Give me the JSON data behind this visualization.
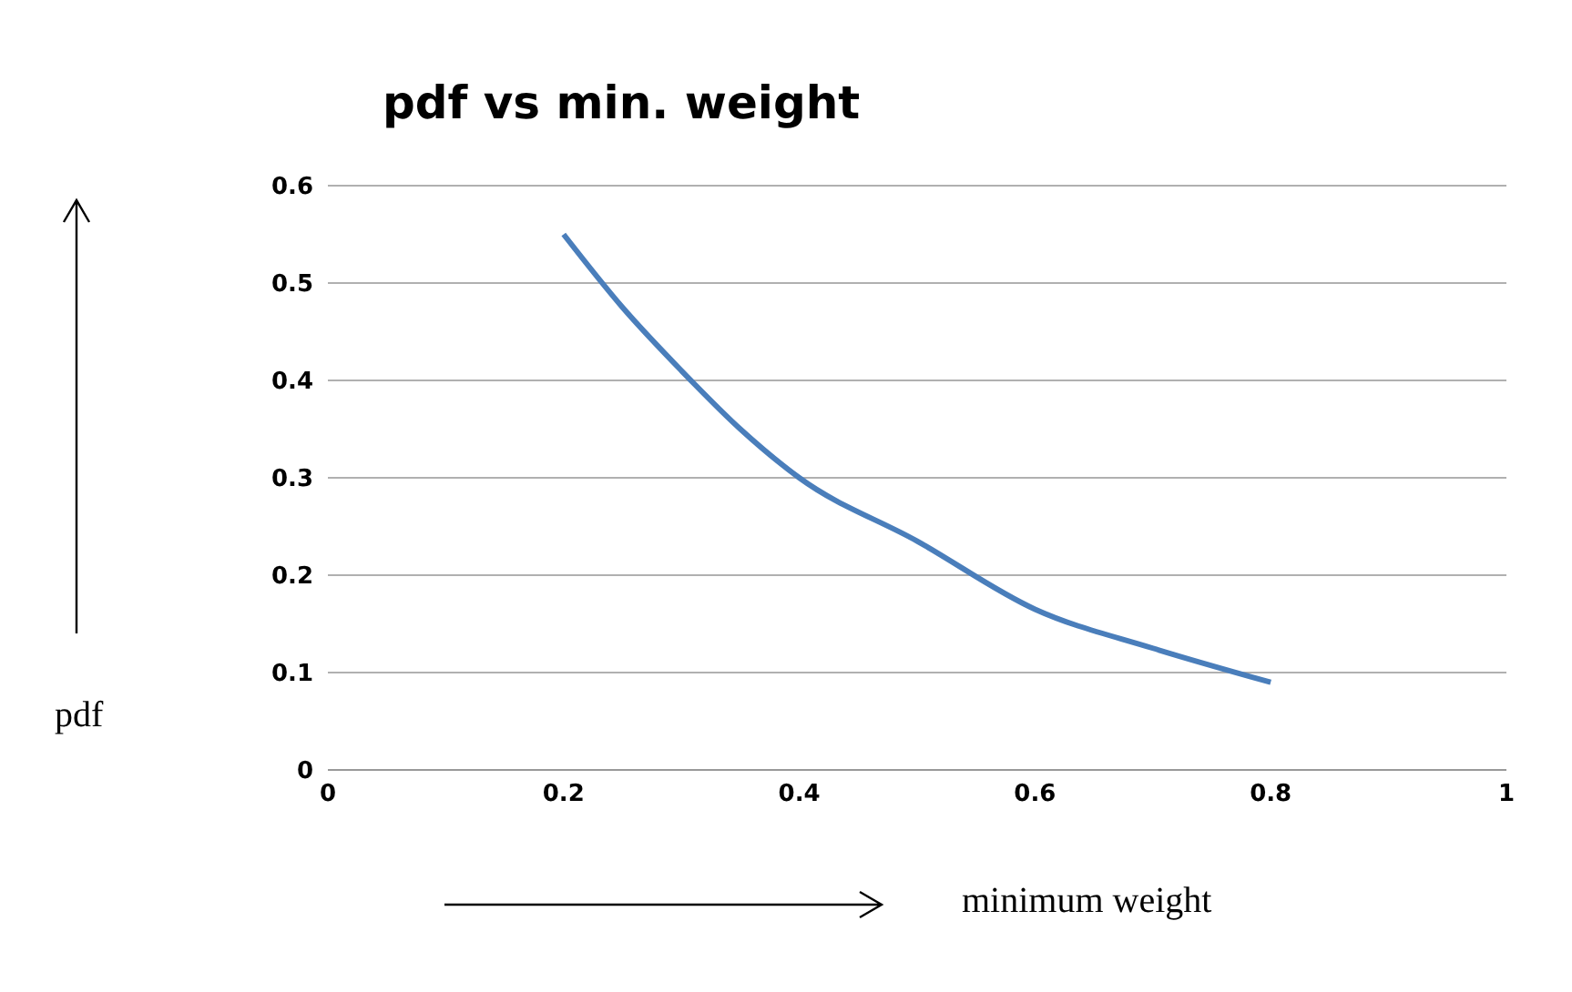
{
  "chart_data": {
    "type": "line",
    "title": "pdf vs min. weight",
    "xlabel": "minimum weight",
    "ylabel": "pdf",
    "x": [
      0.2,
      0.25,
      0.3,
      0.35,
      0.4,
      0.5,
      0.6,
      0.7,
      0.8
    ],
    "series": [
      {
        "color": "#4a7ebb",
        "values": [
          0.55,
          0.475,
          0.41,
          0.35,
          0.3,
          0.235,
          0.165,
          0.125,
          0.09
        ]
      }
    ],
    "xlim": [
      0,
      1
    ],
    "xticks": [
      0,
      0.2,
      0.4,
      0.6,
      0.8,
      1
    ],
    "ylim": [
      0,
      0.6
    ],
    "yticks": [
      0,
      0.1,
      0.2,
      0.3,
      0.4,
      0.5,
      0.6
    ],
    "grid": "y",
    "marker": "none",
    "line_style": "solid",
    "legend": false
  }
}
